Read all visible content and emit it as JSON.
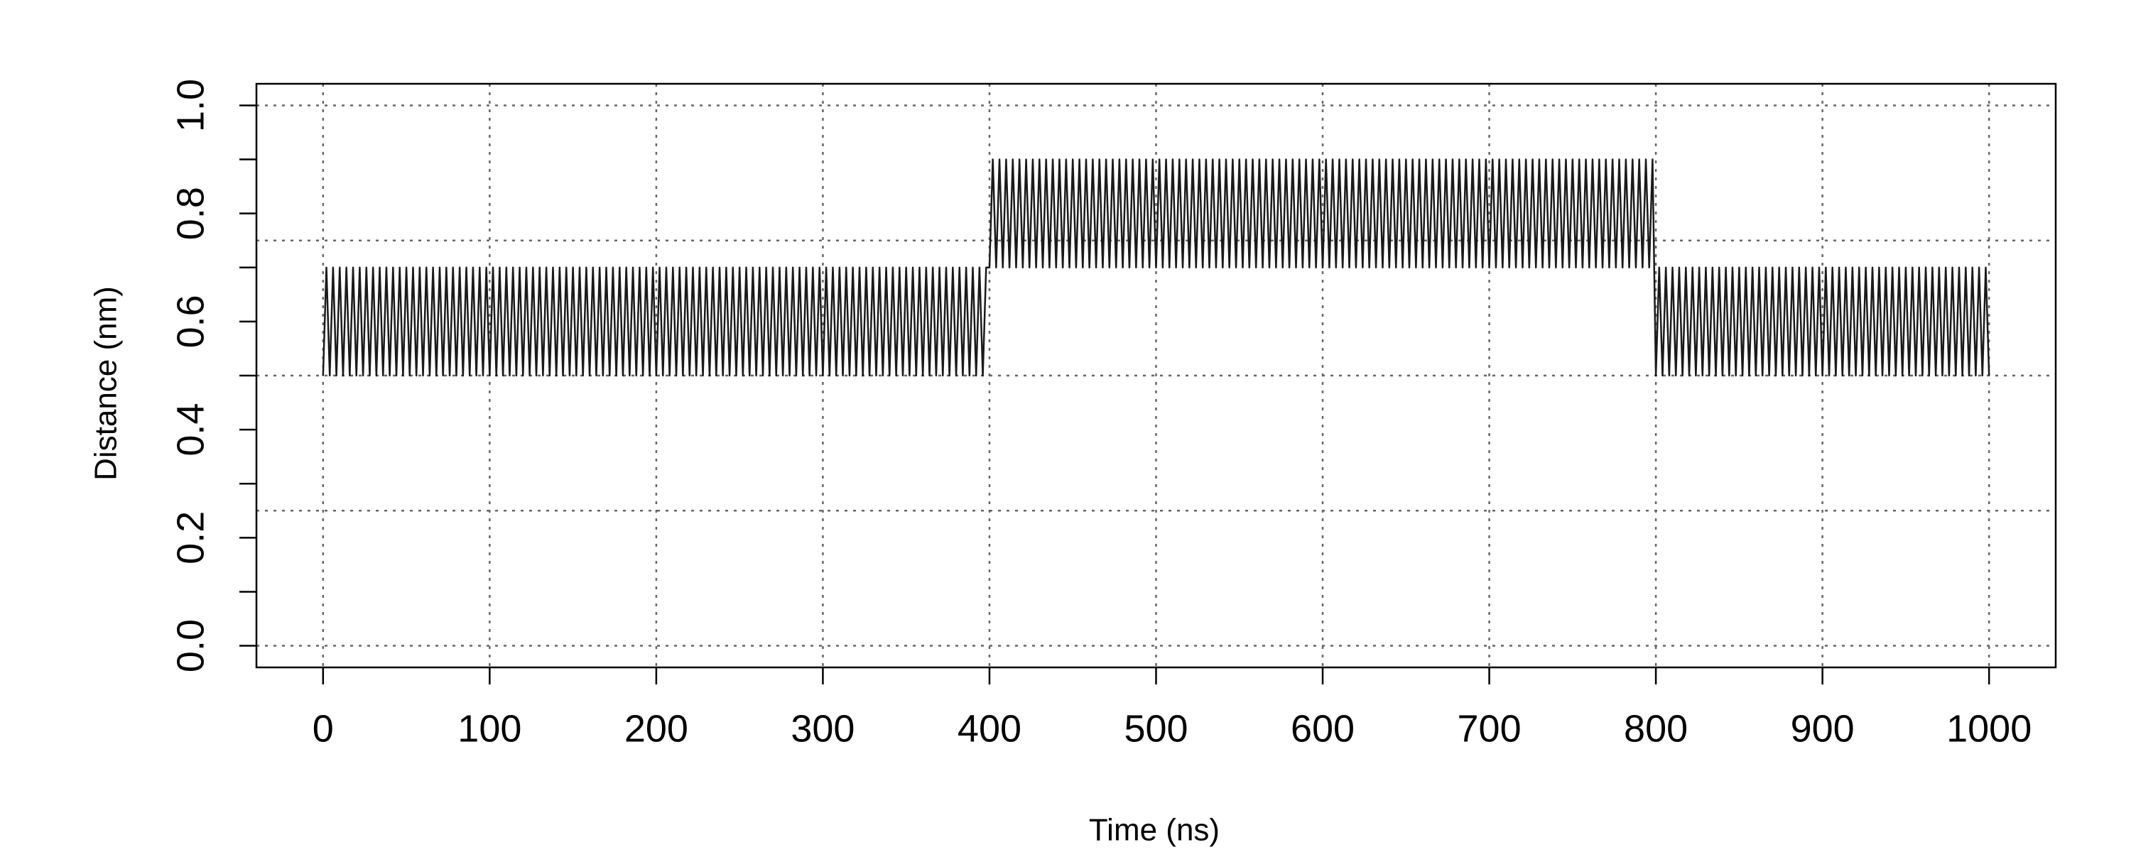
{
  "chart_data": {
    "type": "line",
    "xlabel": "Time (ns)",
    "ylabel": "Distance (nm)",
    "xlim": [
      -40,
      1040
    ],
    "ylim": [
      -0.04,
      1.04
    ],
    "xticks": [
      0,
      100,
      200,
      300,
      400,
      500,
      600,
      700,
      800,
      900,
      1000
    ],
    "yticks": [
      {
        "value": 0,
        "label": "0.0"
      },
      0.2,
      0.4,
      0.6,
      0.8,
      {
        "value": 1,
        "label": "1.0"
      }
    ],
    "yticks_minor": [
      0.1,
      0.3,
      0.5,
      0.7,
      0.9
    ],
    "xgrid": [
      0,
      100,
      200,
      300,
      400,
      500,
      600,
      700,
      800,
      900,
      1000
    ],
    "ygrid": [
      0,
      0.25,
      0.5,
      0.75,
      1
    ],
    "grid": true,
    "x": [
      0,
      2,
      4,
      6,
      8,
      10,
      12,
      14,
      16,
      18,
      20,
      22,
      24,
      26,
      28,
      30,
      32,
      34,
      36,
      38,
      40,
      42,
      44,
      46,
      48,
      50,
      52,
      54,
      56,
      58,
      60,
      62,
      64,
      66,
      68,
      70,
      72,
      74,
      76,
      78,
      80,
      82,
      84,
      86,
      88,
      90,
      92,
      94,
      96,
      98,
      100,
      102,
      104,
      106,
      108,
      110,
      112,
      114,
      116,
      118,
      120,
      122,
      124,
      126,
      128,
      130,
      132,
      134,
      136,
      138,
      140,
      142,
      144,
      146,
      148,
      150,
      152,
      154,
      156,
      158,
      160,
      162,
      164,
      166,
      168,
      170,
      172,
      174,
      176,
      178,
      180,
      182,
      184,
      186,
      188,
      190,
      192,
      194,
      196,
      198,
      200,
      202,
      204,
      206,
      208,
      210,
      212,
      214,
      216,
      218,
      220,
      222,
      224,
      226,
      228,
      230,
      232,
      234,
      236,
      238,
      240,
      242,
      244,
      246,
      248,
      250,
      252,
      254,
      256,
      258,
      260,
      262,
      264,
      266,
      268,
      270,
      272,
      274,
      276,
      278,
      280,
      282,
      284,
      286,
      288,
      290,
      292,
      294,
      296,
      298,
      300,
      302,
      304,
      306,
      308,
      310,
      312,
      314,
      316,
      318,
      320,
      322,
      324,
      326,
      328,
      330,
      332,
      334,
      336,
      338,
      340,
      342,
      344,
      346,
      348,
      350,
      352,
      354,
      356,
      358,
      360,
      362,
      364,
      366,
      368,
      370,
      372,
      374,
      376,
      378,
      380,
      382,
      384,
      386,
      388,
      390,
      392,
      394,
      396,
      398,
      400,
      402,
      404,
      406,
      408,
      410,
      412,
      414,
      416,
      418,
      420,
      422,
      424,
      426,
      428,
      430,
      432,
      434,
      436,
      438,
      440,
      442,
      444,
      446,
      448,
      450,
      452,
      454,
      456,
      458,
      460,
      462,
      464,
      466,
      468,
      470,
      472,
      474,
      476,
      478,
      480,
      482,
      484,
      486,
      488,
      490,
      492,
      494,
      496,
      498,
      500,
      502,
      504,
      506,
      508,
      510,
      512,
      514,
      516,
      518,
      520,
      522,
      524,
      526,
      528,
      530,
      532,
      534,
      536,
      538,
      540,
      542,
      544,
      546,
      548,
      550,
      552,
      554,
      556,
      558,
      560,
      562,
      564,
      566,
      568,
      570,
      572,
      574,
      576,
      578,
      580,
      582,
      584,
      586,
      588,
      590,
      592,
      594,
      596,
      598,
      600,
      602,
      604,
      606,
      608,
      610,
      612,
      614,
      616,
      618,
      620,
      622,
      624,
      626,
      628,
      630,
      632,
      634,
      636,
      638,
      640,
      642,
      644,
      646,
      648,
      650,
      652,
      654,
      656,
      658,
      660,
      662,
      664,
      666,
      668,
      670,
      672,
      674,
      676,
      678,
      680,
      682,
      684,
      686,
      688,
      690,
      692,
      694,
      696,
      698,
      700,
      702,
      704,
      706,
      708,
      710,
      712,
      714,
      716,
      718,
      720,
      722,
      724,
      726,
      728,
      730,
      732,
      734,
      736,
      738,
      740,
      742,
      744,
      746,
      748,
      750,
      752,
      754,
      756,
      758,
      760,
      762,
      764,
      766,
      768,
      770,
      772,
      774,
      776,
      778,
      780,
      782,
      784,
      786,
      788,
      790,
      792,
      794,
      796,
      798,
      800,
      802,
      804,
      806,
      808,
      810,
      812,
      814,
      816,
      818,
      820,
      822,
      824,
      826,
      828,
      830,
      832,
      834,
      836,
      838,
      840,
      842,
      844,
      846,
      848,
      850,
      852,
      854,
      856,
      858,
      860,
      862,
      864,
      866,
      868,
      870,
      872,
      874,
      876,
      878,
      880,
      882,
      884,
      886,
      888,
      890,
      892,
      894,
      896,
      898,
      900,
      902,
      904,
      906,
      908,
      910,
      912,
      914,
      916,
      918,
      920,
      922,
      924,
      926,
      928,
      930,
      932,
      934,
      936,
      938,
      940,
      942,
      944,
      946,
      948,
      950,
      952,
      954,
      956,
      958,
      960,
      962,
      964,
      966,
      968,
      970,
      972,
      974,
      976,
      978,
      980,
      982,
      984,
      986,
      988,
      990,
      992,
      994,
      996,
      998,
      1000
    ],
    "series": [
      {
        "color": "#1a1a1a",
        "values": [
          0.5,
          0.7,
          0.5,
          0.7,
          0.5,
          0.7,
          0.5,
          0.7,
          0.5,
          0.7,
          0.5,
          0.7,
          0.5,
          0.7,
          0.5,
          0.7,
          0.5,
          0.7,
          0.5,
          0.7,
          0.5,
          0.7,
          0.5,
          0.7,
          0.5,
          0.7,
          0.5,
          0.7,
          0.5,
          0.7,
          0.5,
          0.7,
          0.5,
          0.7,
          0.5,
          0.7,
          0.5,
          0.7,
          0.5,
          0.7,
          0.5,
          0.7,
          0.5,
          0.7,
          0.5,
          0.7,
          0.5,
          0.7,
          0.5,
          0.7,
          0.5,
          0.7,
          0.5,
          0.7,
          0.5,
          0.7,
          0.5,
          0.7,
          0.5,
          0.7,
          0.5,
          0.7,
          0.5,
          0.7,
          0.5,
          0.7,
          0.5,
          0.7,
          0.5,
          0.7,
          0.5,
          0.7,
          0.5,
          0.7,
          0.5,
          0.7,
          0.5,
          0.7,
          0.5,
          0.7,
          0.5,
          0.7,
          0.5,
          0.7,
          0.5,
          0.7,
          0.5,
          0.7,
          0.5,
          0.7,
          0.5,
          0.7,
          0.5,
          0.7,
          0.5,
          0.7,
          0.5,
          0.7,
          0.5,
          0.7,
          0.5,
          0.7,
          0.5,
          0.7,
          0.5,
          0.7,
          0.5,
          0.7,
          0.5,
          0.7,
          0.5,
          0.7,
          0.5,
          0.7,
          0.5,
          0.7,
          0.5,
          0.7,
          0.5,
          0.7,
          0.5,
          0.7,
          0.5,
          0.7,
          0.5,
          0.7,
          0.5,
          0.7,
          0.5,
          0.7,
          0.5,
          0.7,
          0.5,
          0.7,
          0.5,
          0.7,
          0.5,
          0.7,
          0.5,
          0.7,
          0.5,
          0.7,
          0.5,
          0.7,
          0.5,
          0.7,
          0.5,
          0.7,
          0.5,
          0.7,
          0.5,
          0.7,
          0.5,
          0.7,
          0.5,
          0.7,
          0.5,
          0.7,
          0.5,
          0.7,
          0.5,
          0.7,
          0.5,
          0.7,
          0.5,
          0.7,
          0.5,
          0.7,
          0.5,
          0.7,
          0.5,
          0.7,
          0.5,
          0.7,
          0.5,
          0.7,
          0.5,
          0.7,
          0.5,
          0.7,
          0.5,
          0.7,
          0.5,
          0.7,
          0.5,
          0.7,
          0.5,
          0.7,
          0.5,
          0.7,
          0.5,
          0.7,
          0.5,
          0.7,
          0.5,
          0.7,
          0.5,
          0.7,
          0.5,
          0.7,
          0.7,
          0.9,
          0.7,
          0.9,
          0.7,
          0.9,
          0.7,
          0.9,
          0.7,
          0.9,
          0.7,
          0.9,
          0.7,
          0.9,
          0.7,
          0.9,
          0.7,
          0.9,
          0.7,
          0.9,
          0.7,
          0.9,
          0.7,
          0.9,
          0.7,
          0.9,
          0.7,
          0.9,
          0.7,
          0.9,
          0.7,
          0.9,
          0.7,
          0.9,
          0.7,
          0.9,
          0.7,
          0.9,
          0.7,
          0.9,
          0.7,
          0.9,
          0.7,
          0.9,
          0.7,
          0.9,
          0.7,
          0.9,
          0.7,
          0.9,
          0.7,
          0.9,
          0.7,
          0.9,
          0.7,
          0.9,
          0.7,
          0.9,
          0.7,
          0.9,
          0.7,
          0.9,
          0.7,
          0.9,
          0.7,
          0.9,
          0.7,
          0.9,
          0.7,
          0.9,
          0.7,
          0.9,
          0.7,
          0.9,
          0.7,
          0.9,
          0.7,
          0.9,
          0.7,
          0.9,
          0.7,
          0.9,
          0.7,
          0.9,
          0.7,
          0.9,
          0.7,
          0.9,
          0.7,
          0.9,
          0.7,
          0.9,
          0.7,
          0.9,
          0.7,
          0.9,
          0.7,
          0.9,
          0.7,
          0.9,
          0.7,
          0.9,
          0.7,
          0.9,
          0.7,
          0.9,
          0.7,
          0.9,
          0.7,
          0.9,
          0.7,
          0.9,
          0.7,
          0.9,
          0.7,
          0.9,
          0.7,
          0.9,
          0.7,
          0.9,
          0.7,
          0.9,
          0.7,
          0.9,
          0.7,
          0.9,
          0.7,
          0.9,
          0.7,
          0.9,
          0.7,
          0.9,
          0.7,
          0.9,
          0.7,
          0.9,
          0.7,
          0.9,
          0.7,
          0.9,
          0.7,
          0.9,
          0.7,
          0.9,
          0.7,
          0.9,
          0.7,
          0.9,
          0.7,
          0.9,
          0.7,
          0.9,
          0.7,
          0.9,
          0.7,
          0.9,
          0.7,
          0.9,
          0.7,
          0.9,
          0.7,
          0.9,
          0.7,
          0.9,
          0.7,
          0.9,
          0.7,
          0.9,
          0.7,
          0.9,
          0.7,
          0.9,
          0.7,
          0.9,
          0.7,
          0.9,
          0.7,
          0.9,
          0.7,
          0.9,
          0.7,
          0.9,
          0.7,
          0.9,
          0.7,
          0.9,
          0.7,
          0.9,
          0.7,
          0.9,
          0.7,
          0.9,
          0.7,
          0.9,
          0.7,
          0.9,
          0.7,
          0.9,
          0.7,
          0.9,
          0.5,
          0.7,
          0.5,
          0.7,
          0.5,
          0.7,
          0.5,
          0.7,
          0.5,
          0.7,
          0.5,
          0.7,
          0.5,
          0.7,
          0.5,
          0.7,
          0.5,
          0.7,
          0.5,
          0.7,
          0.5,
          0.7,
          0.5,
          0.7,
          0.5,
          0.7,
          0.5,
          0.7,
          0.5,
          0.7,
          0.5,
          0.7,
          0.5,
          0.7,
          0.5,
          0.7,
          0.5,
          0.7,
          0.5,
          0.7,
          0.5,
          0.7,
          0.5,
          0.7,
          0.5,
          0.7,
          0.5,
          0.7,
          0.5,
          0.7,
          0.5,
          0.7,
          0.5,
          0.7,
          0.5,
          0.7,
          0.5,
          0.7,
          0.5,
          0.7,
          0.5,
          0.7,
          0.5,
          0.7,
          0.5,
          0.7,
          0.5,
          0.7,
          0.5,
          0.7,
          0.5,
          0.7,
          0.5,
          0.7,
          0.5,
          0.7,
          0.5,
          0.7,
          0.5,
          0.7,
          0.5,
          0.7,
          0.5,
          0.7,
          0.5,
          0.7,
          0.5,
          0.7,
          0.5,
          0.7,
          0.5,
          0.7,
          0.5,
          0.7,
          0.5,
          0.7,
          0.5,
          0.7,
          0.5,
          0.7,
          0.5
        ]
      }
    ]
  }
}
